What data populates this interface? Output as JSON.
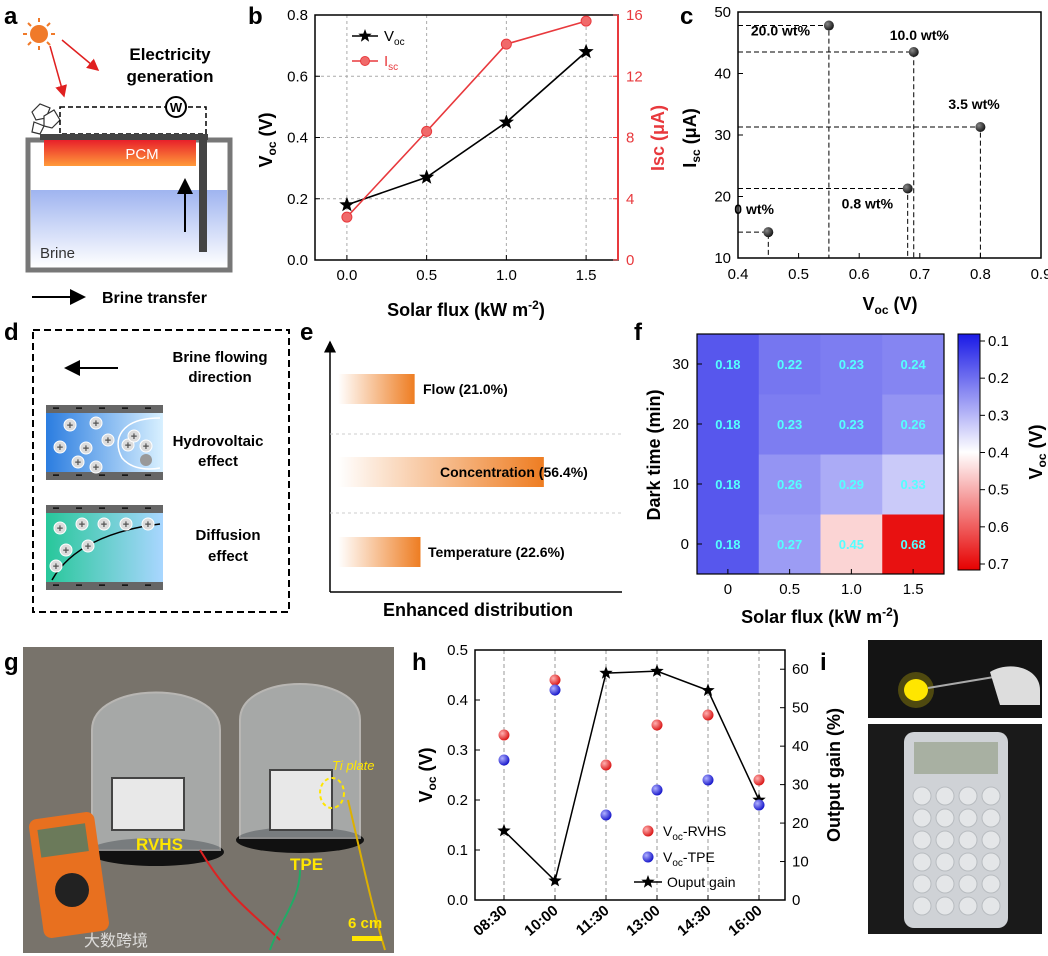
{
  "panels": {
    "a": "a",
    "b": "b",
    "c": "c",
    "d": "d",
    "e": "e",
    "f": "f",
    "g": "g",
    "h": "h",
    "i": "i"
  },
  "panel_a": {
    "electricity": [
      "Electricity",
      "generation"
    ],
    "pcm": "PCM",
    "brine": "Brine",
    "brine_transfer": "Brine transfer",
    "meter": "W"
  },
  "panel_d": {
    "brine_flow": [
      "Brine flowing",
      "direction"
    ],
    "hydrovoltaic": [
      "Hydrovoltaic",
      "effect"
    ],
    "diffusion": [
      "Diffusion",
      "effect"
    ],
    "plus": "+",
    "minus": "−"
  },
  "panel_g": {
    "rvhs": "RVHS",
    "tpe": "TPE",
    "ti_plate": "Ti plate",
    "scale": "6 cm",
    "watermark": "大数跨境"
  },
  "colors": {
    "black": "#000000",
    "red": "#e8393d",
    "blue": "#2b2bd9",
    "orange": "#ee7d22"
  },
  "chart_data": [
    {
      "id": "b",
      "type": "line",
      "x": [
        0.0,
        0.5,
        1.0,
        1.5
      ],
      "series": [
        {
          "name": "V",
          "sub": "oc",
          "axis": "left",
          "values": [
            0.18,
            0.27,
            0.45,
            0.68
          ],
          "marker": "star",
          "color": "#000000"
        },
        {
          "name": "I",
          "sub": "sc",
          "axis": "right",
          "values": [
            2.8,
            8.4,
            14.1,
            15.6
          ],
          "marker": "circle",
          "color": "#e8393d"
        }
      ],
      "xlabel": "Solar flux (kW m",
      "xlabel_sup": "-2",
      "xlabel_end": ")",
      "ylabel": "V",
      "ylabel_sub": "oc",
      "ylabel_end": " (V)",
      "y2label": "Isc (μA)",
      "xlim": [
        -0.2,
        1.7
      ],
      "ylim": [
        0,
        0.8
      ],
      "y2lim": [
        0,
        16
      ],
      "xticks": [
        "0.0",
        "0.5",
        "1.0",
        "1.5"
      ],
      "yticks": [
        "0.0",
        "0.2",
        "0.4",
        "0.6",
        "0.8"
      ],
      "y2ticks": [
        "0",
        "4",
        "8",
        "12",
        "16"
      ],
      "grid": true
    },
    {
      "id": "c",
      "type": "scatter",
      "points": [
        {
          "x": 0.45,
          "y": 14.2,
          "label": "0 wt%"
        },
        {
          "x": 0.68,
          "y": 21.3,
          "label": "0.8 wt%"
        },
        {
          "x": 0.8,
          "y": 31.3,
          "label": "3.5 wt%"
        },
        {
          "x": 0.69,
          "y": 43.5,
          "label": "10.0 wt%"
        },
        {
          "x": 0.55,
          "y": 47.8,
          "label": "20.0 wt%"
        }
      ],
      "xlabel": "V",
      "xlabel_sub": "oc",
      "xlabel_end": " (V)",
      "ylabel": "I",
      "ylabel_sub": "sc",
      "ylabel_end": " (μA)",
      "xlim": [
        0.4,
        0.9
      ],
      "ylim": [
        10,
        50
      ],
      "xticks": [
        "0.4",
        "0.5",
        "0.6",
        "0.7",
        "0.8",
        "0.9"
      ],
      "yticks": [
        "10",
        "20",
        "30",
        "40",
        "50"
      ]
    },
    {
      "id": "e",
      "type": "bar",
      "categories": [
        "Flow",
        "Concentration",
        "Temperature"
      ],
      "values": [
        21.0,
        56.4,
        22.6
      ],
      "labels": [
        "Flow (21.0%)",
        "Concentration (56.4%)",
        "Temperature (22.6%)"
      ],
      "xlabel": "Enhanced distribution"
    },
    {
      "id": "f",
      "type": "heatmap",
      "x": [
        "0",
        "0.5",
        "1.0",
        "1.5"
      ],
      "y": [
        "0",
        "10",
        "20",
        "30"
      ],
      "values": [
        [
          0.18,
          0.27,
          0.45,
          0.68
        ],
        [
          0.18,
          0.26,
          0.29,
          0.33
        ],
        [
          0.18,
          0.23,
          0.23,
          0.26
        ],
        [
          0.18,
          0.22,
          0.23,
          0.24
        ]
      ],
      "labels": [
        [
          "0.18",
          "0.27",
          "0.45",
          "0.68"
        ],
        [
          "0.18",
          "0.26",
          "0.29",
          "0.33"
        ],
        [
          "0.18",
          "0.23",
          "0.23",
          "0.26"
        ],
        [
          "0.18",
          "0.22",
          "0.23",
          "0.24"
        ]
      ],
      "xlabel": "Solar flux (kW m",
      "xlabel_sup": "-2",
      "xlabel_end": ")",
      "ylabel": "Dark time (min)",
      "colorbar_label": "V",
      "colorbar_sub": "oc",
      "colorbar_end": " (V)",
      "colorbar_ticks": [
        "0.1",
        "0.2",
        "0.3",
        "0.4",
        "0.5",
        "0.6",
        "0.7"
      ],
      "crange": [
        0.1,
        0.7
      ]
    },
    {
      "id": "h",
      "type": "scatter",
      "categories": [
        "08:30",
        "10:00",
        "11:30",
        "13:00",
        "14:30",
        "16:00"
      ],
      "series": [
        {
          "name": "V",
          "sub": "oc",
          "suffix": "-RVHS",
          "values": [
            0.33,
            0.44,
            0.27,
            0.35,
            0.37,
            0.24
          ],
          "color": "#e8393d",
          "axis": "left"
        },
        {
          "name": "V",
          "sub": "oc",
          "suffix": "-TPE",
          "values": [
            0.28,
            0.42,
            0.17,
            0.22,
            0.24,
            0.19
          ],
          "color": "#2b2bd9",
          "axis": "left"
        },
        {
          "name": "Ouput gain",
          "values": [
            18,
            5,
            59,
            59.5,
            54.5,
            26
          ],
          "color": "#000000",
          "axis": "right",
          "marker": "star"
        }
      ],
      "ylabel": "V",
      "ylabel_sub": "oc",
      "ylabel_end": " (V)",
      "y2label": "Output gain (%)",
      "ylim": [
        0,
        0.5
      ],
      "y2lim": [
        0,
        65
      ],
      "yticks": [
        "0.0",
        "0.1",
        "0.2",
        "0.3",
        "0.4",
        "0.5"
      ],
      "y2ticks": [
        "0",
        "10",
        "20",
        "30",
        "40",
        "50",
        "60"
      ]
    }
  ]
}
